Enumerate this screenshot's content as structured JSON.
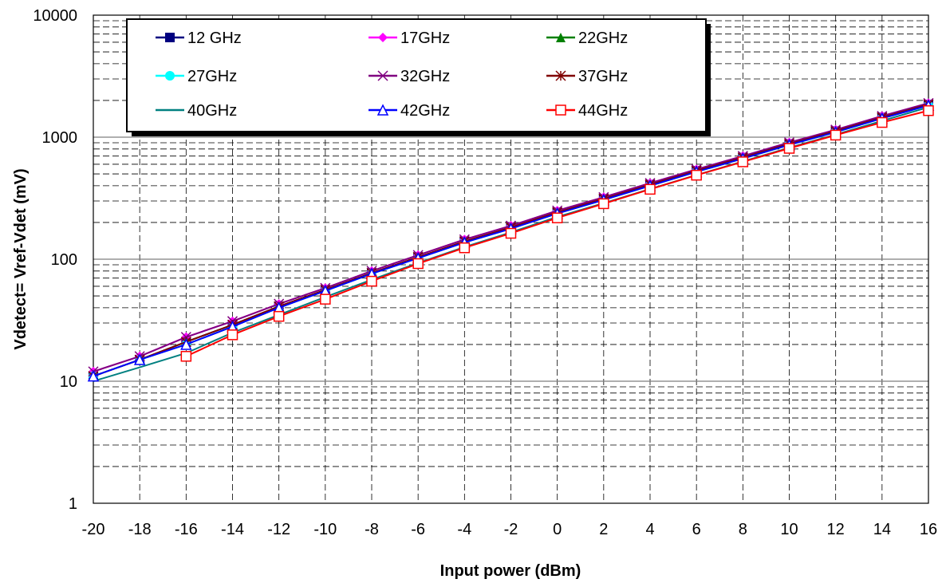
{
  "chart_data": {
    "type": "line",
    "title": "",
    "xlabel": "Input power (dBm)",
    "ylabel": "Vdetect= Vref-Vdet (mV)",
    "x": [
      -20,
      -18,
      -16,
      -14,
      -12,
      -10,
      -8,
      -6,
      -4,
      -2,
      0,
      2,
      4,
      6,
      8,
      10,
      12,
      14,
      16
    ],
    "xlim": [
      -20,
      16
    ],
    "ylim": [
      1,
      10000
    ],
    "yscale": "log",
    "xticks": [
      -20,
      -18,
      -16,
      -14,
      -12,
      -10,
      -8,
      -6,
      -4,
      -2,
      0,
      2,
      4,
      6,
      8,
      10,
      12,
      14,
      16
    ],
    "yticks": [
      1,
      10,
      100,
      1000,
      10000
    ],
    "ytick_labels": [
      "1",
      "10",
      "100",
      "1000",
      "10000"
    ],
    "grid": true,
    "legend_position": "top-left",
    "series": [
      {
        "name": "12 GHz",
        "color": "#000080",
        "marker": "square-filled",
        "values": [
          11,
          15,
          21,
          29,
          41,
          56,
          77,
          104,
          140,
          182,
          242,
          312,
          408,
          530,
          680,
          880,
          1120,
          1450,
          1850
        ]
      },
      {
        "name": "17GHz",
        "color": "#FF00FF",
        "marker": "diamond-filled",
        "values": [
          12,
          16,
          23,
          31,
          43,
          58,
          80,
          108,
          145,
          188,
          250,
          322,
          420,
          545,
          700,
          905,
          1150,
          1490,
          1900
        ]
      },
      {
        "name": "22GHz",
        "color": "#008000",
        "marker": "triangle-filled",
        "values": [
          11,
          15,
          21,
          29,
          41,
          56,
          77,
          103,
          139,
          180,
          240,
          310,
          405,
          525,
          675,
          875,
          1110,
          1440,
          1840
        ]
      },
      {
        "name": "27GHz",
        "color": "#00FFFF",
        "marker": "circle-filled",
        "values": [
          11,
          15,
          20,
          28,
          40,
          55,
          76,
          102,
          137,
          178,
          237,
          306,
          400,
          520,
          668,
          865,
          1100,
          1425,
          1820
        ]
      },
      {
        "name": "32GHz",
        "color": "#800080",
        "marker": "x",
        "values": [
          12,
          16,
          23,
          31,
          43,
          58,
          80,
          108,
          145,
          188,
          250,
          322,
          420,
          545,
          700,
          905,
          1150,
          1490,
          1900
        ]
      },
      {
        "name": "37GHz",
        "color": "#800000",
        "marker": "star",
        "values": [
          11,
          15,
          21,
          29,
          41,
          56,
          77,
          104,
          140,
          182,
          242,
          312,
          408,
          530,
          680,
          880,
          1120,
          1450,
          1850
        ]
      },
      {
        "name": "40GHz",
        "color": "#008080",
        "marker": "none",
        "values": [
          10,
          13,
          17,
          25,
          35,
          49,
          68,
          93,
          126,
          166,
          222,
          288,
          376,
          490,
          632,
          820,
          1050,
          1360,
          1760
        ]
      },
      {
        "name": "42GHz",
        "color": "#0000FF",
        "marker": "triangle-open",
        "values": [
          11,
          15,
          20,
          28,
          40,
          55,
          76,
          102,
          137,
          178,
          237,
          306,
          400,
          520,
          668,
          865,
          1100,
          1425,
          1820
        ]
      },
      {
        "name": "44GHz",
        "color": "#FF0000",
        "marker": "square-open",
        "values": [
          null,
          null,
          16,
          24,
          34,
          47,
          66,
          92,
          124,
          163,
          218,
          285,
          374,
          488,
          628,
          810,
          1040,
          1320,
          1650
        ]
      }
    ]
  }
}
